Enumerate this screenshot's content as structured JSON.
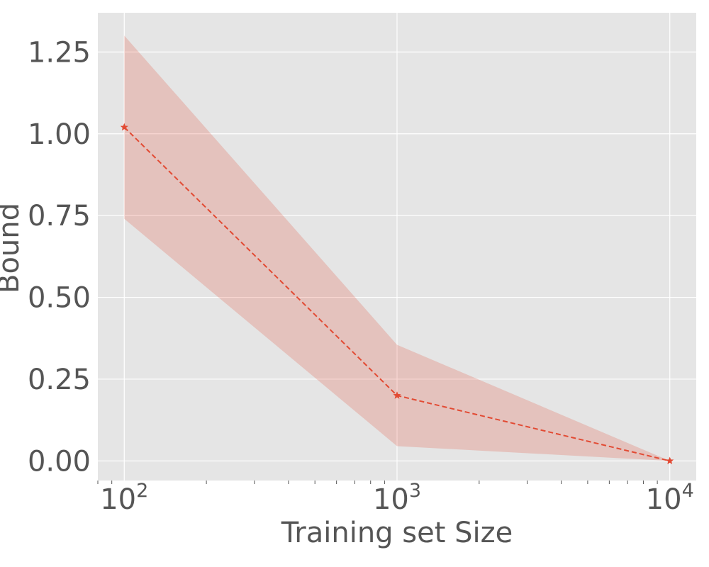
{
  "chart_data": {
    "type": "line",
    "title": "",
    "xlabel": "Training set Size",
    "ylabel": "Bound",
    "x_scale": "log",
    "xlim": [
      80,
      12500
    ],
    "ylim": [
      -0.06,
      1.37
    ],
    "x_ticks": [
      {
        "value": 100,
        "base": "10",
        "exp": "2"
      },
      {
        "value": 1000,
        "base": "10",
        "exp": "3"
      },
      {
        "value": 10000,
        "base": "10",
        "exp": "4"
      }
    ],
    "y_ticks": [
      {
        "value": 0.0,
        "label": "0.00"
      },
      {
        "value": 0.25,
        "label": "0.25"
      },
      {
        "value": 0.5,
        "label": "0.50"
      },
      {
        "value": 0.75,
        "label": "0.75"
      },
      {
        "value": 1.0,
        "label": "1.00"
      },
      {
        "value": 1.25,
        "label": "1.25"
      }
    ],
    "grid": true,
    "legend": "none",
    "series": [
      {
        "x": [
          100,
          1000,
          10000
        ],
        "y": [
          1.02,
          0.2,
          0.0
        ],
        "lower": [
          0.74,
          0.045,
          0.0
        ],
        "upper": [
          1.3,
          0.355,
          0.0
        ],
        "color": "#E24A33",
        "line_style": "dashed",
        "marker": "star"
      }
    ],
    "colors": {
      "plot_background": "#E5E5E5",
      "grid": "#FFFFFF",
      "band_fill": "#E24A33",
      "text": "#555555"
    }
  }
}
